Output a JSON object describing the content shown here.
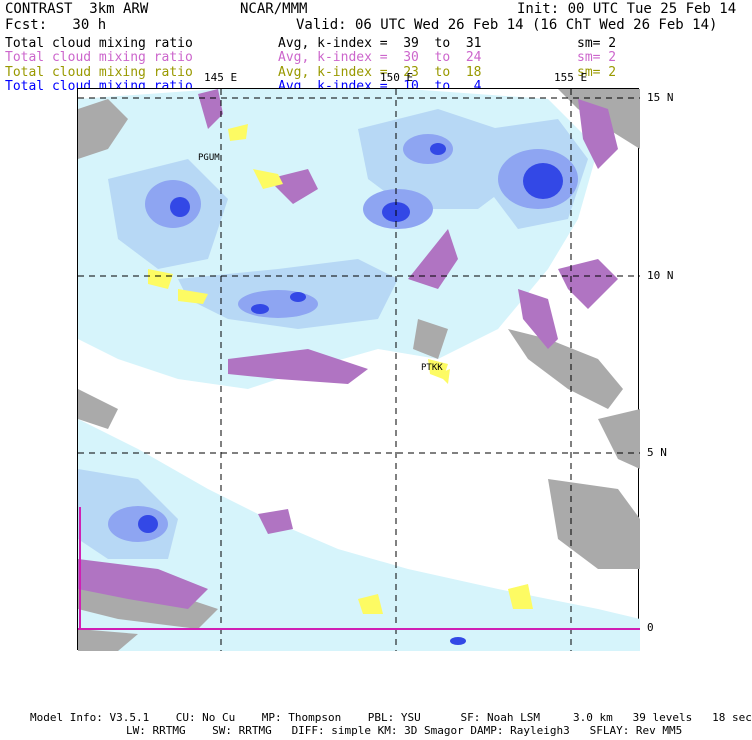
{
  "header": {
    "model": "CONTRAST  3km ARW",
    "org": "NCAR/MMM",
    "init": "Init: 00 UTC Tue 25 Feb 14",
    "fcst": "Fcst:   30 h",
    "valid": "Valid: 06 UTC Wed 26 Feb 14 (16 ChT Wed 26 Feb 14)"
  },
  "fields": [
    {
      "name": "Total cloud mixing ratio",
      "avg": "Avg, k-index =  39  to  31",
      "sm": "sm= 2",
      "color": "#000000"
    },
    {
      "name": "Total cloud mixing ratio",
      "avg": "Avg, k-index =  30  to  24",
      "sm": "sm= 2",
      "color": "#cc66cc"
    },
    {
      "name": "Total cloud mixing ratio",
      "avg": "Avg, k-index =  23  to  18",
      "sm": "sm= 2",
      "color": "#999900"
    },
    {
      "name": "Total cloud mixing ratio",
      "avg": "Avg, k-index =  10  to   4",
      "sm": "",
      "color": "#0000ff"
    }
  ],
  "map": {
    "lon_labels": [
      "145 E",
      "150 E",
      "155 E"
    ],
    "lat_labels": [
      "15 N",
      "10 N",
      "5 N",
      "0"
    ],
    "stations": [
      "PGUM",
      "PTKK"
    ],
    "colors": {
      "land": "#aaaaaa",
      "cloud_light": "#d6f4fb",
      "cloud_mid": "#b7d8f5",
      "cloud_blue": "#8ea5f2",
      "cloud_dark": "#3348e6",
      "purple": "#b074c2",
      "yellow": "#fdfb63",
      "equator": "#d01fb4"
    }
  },
  "footer": {
    "line1": "Model Info: V3.5.1    CU: No Cu    MP: Thompson    PBL: YSU      SF: Noah LSM     3.0 km   39 levels   18 sec",
    "line2": "LW: RRTMG    SW: RRTMG   DIFF: simple KM: 3D Smagor DAMP: Rayleigh3   SFLAY: Rev MM5"
  }
}
